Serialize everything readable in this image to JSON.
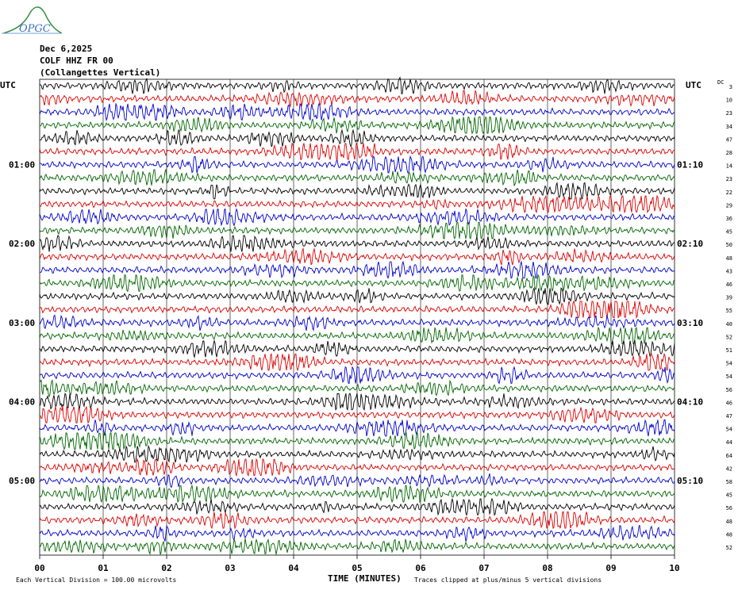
{
  "logo_text": "OPGC",
  "header": {
    "date": "Dec 6,2025",
    "station": "COLF HHZ FR 00",
    "location": "(Collangettes Vertical)"
  },
  "left_axis_title": "UTC",
  "right_axis_title": "UTC",
  "dc_title": "DC",
  "colors": {
    "trace_cycle": [
      "#000000",
      "#dd0000",
      "#0000cc",
      "#006600"
    ],
    "grid": "#000000"
  },
  "chart_data": {
    "type": "line",
    "title": "COLF HHZ FR 00 (Collangettes Vertical)",
    "xlabel": "TIME (MINUTES)",
    "x_ticks": [
      "00",
      "01",
      "02",
      "03",
      "04",
      "05",
      "06",
      "07",
      "08",
      "09",
      "10"
    ],
    "xlim": [
      0,
      10
    ],
    "left_time_labels": [
      {
        "row": 6,
        "label": "01:00"
      },
      {
        "row": 12,
        "label": "02:00"
      },
      {
        "row": 18,
        "label": "03:00"
      },
      {
        "row": 24,
        "label": "04:00"
      },
      {
        "row": 30,
        "label": "05:00"
      }
    ],
    "right_time_labels": [
      {
        "row": 6,
        "label": "01:10"
      },
      {
        "row": 12,
        "label": "02:10"
      },
      {
        "row": 18,
        "label": "03:10"
      },
      {
        "row": 24,
        "label": "04:10"
      },
      {
        "row": 30,
        "label": "05:10"
      }
    ],
    "dc_offsets": [
      3,
      10,
      23,
      34,
      47,
      28,
      14,
      23,
      22,
      29,
      36,
      45,
      50,
      48,
      43,
      46,
      39,
      55,
      40,
      52,
      51,
      54,
      54,
      56,
      46,
      47,
      54,
      44,
      64,
      42,
      58,
      45,
      56,
      48,
      48,
      52
    ],
    "trace_count": 36,
    "minutes_per_trace": 10
  },
  "footer": {
    "scale_note": "Each Vertical Division = 100.00 microvolts",
    "clip_note": "Traces clipped at plus/minus 5 vertical divisions"
  }
}
